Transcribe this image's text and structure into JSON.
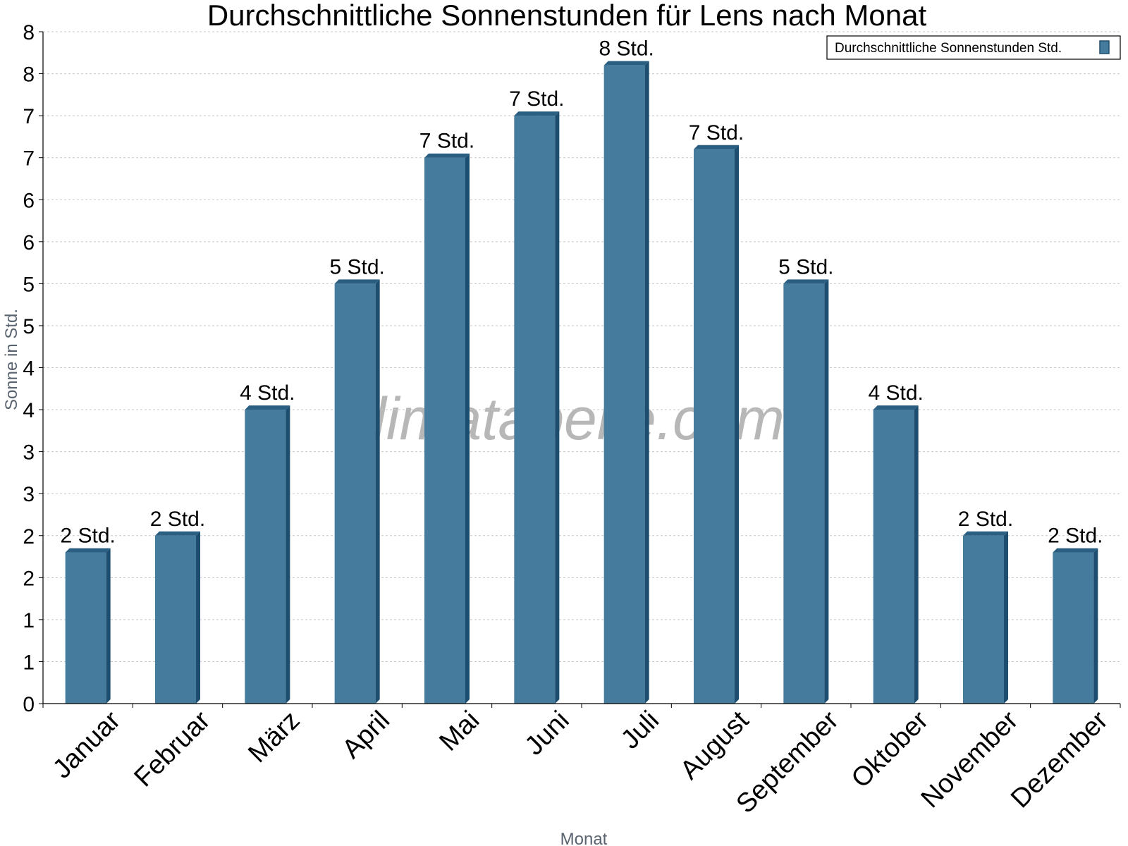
{
  "chart_data": {
    "type": "bar",
    "title": "Durchschnittliche Sonnenstunden für Lens nach Monat",
    "xlabel": "Monat",
    "ylabel": "Sonne in Std.",
    "ylim": [
      0,
      8
    ],
    "ytick_labels": [
      "0",
      "1",
      "1",
      "2",
      "2",
      "3",
      "3",
      "4",
      "4",
      "5",
      "5",
      "6",
      "6",
      "7",
      "7",
      "8",
      "8"
    ],
    "grid": true,
    "legend_position": "top-right",
    "watermark": "klimatabelle.com",
    "colors": {
      "bar": "#457b9d",
      "bar_side": "#1d4e6f",
      "bar_top": "#2b5f82",
      "grid": "#c8c8c8",
      "axis": "#000000"
    },
    "categories": [
      "Januar",
      "Februar",
      "März",
      "April",
      "Mai",
      "Juni",
      "Juli",
      "August",
      "September",
      "Oktober",
      "November",
      "Dezember"
    ],
    "series": [
      {
        "name": "Durchschnittliche Sonnenstunden Std.",
        "values": [
          1.8,
          2.0,
          3.5,
          5.0,
          6.5,
          7.0,
          7.6,
          6.6,
          5.0,
          3.5,
          2.0,
          1.8
        ],
        "labels": [
          "2 Std.",
          "2 Std.",
          "4 Std.",
          "5 Std.",
          "7 Std.",
          "7 Std.",
          "8 Std.",
          "7 Std.",
          "5 Std.",
          "4 Std.",
          "2 Std.",
          "2 Std."
        ]
      }
    ]
  }
}
